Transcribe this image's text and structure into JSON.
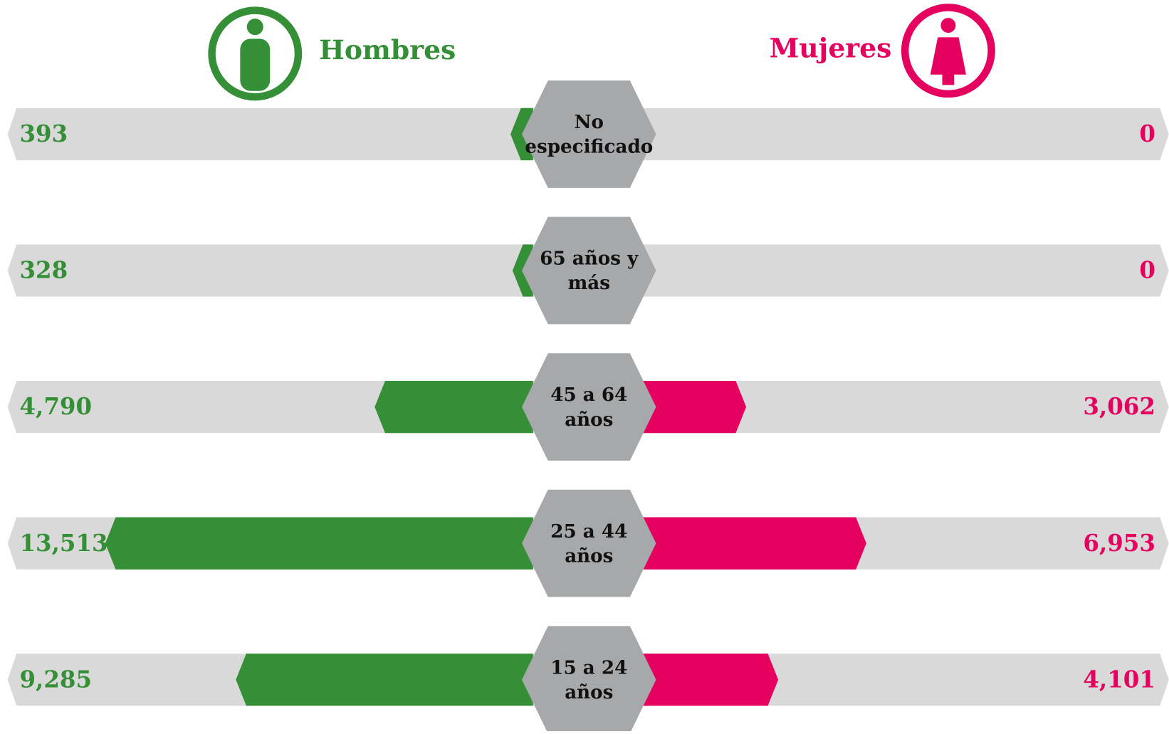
{
  "chart_data": {
    "type": "butterfly",
    "categories": [
      "No especificado",
      "65 años y más",
      "45 a 64 años",
      "25 a 44 años",
      "15 a 24 años"
    ],
    "series": [
      {
        "name": "Hombres",
        "color": "#358f37",
        "values": [
          393,
          328,
          4790,
          13513,
          9285
        ],
        "value_labels": [
          "393",
          "328",
          "4,790",
          "13,513",
          "9,285"
        ]
      },
      {
        "name": "Mujeres",
        "color": "#e5005f",
        "values": [
          0,
          0,
          3062,
          6953,
          4101
        ],
        "value_labels": [
          "0",
          "0",
          "3,062",
          "6,953",
          "4,101"
        ]
      }
    ]
  }
}
